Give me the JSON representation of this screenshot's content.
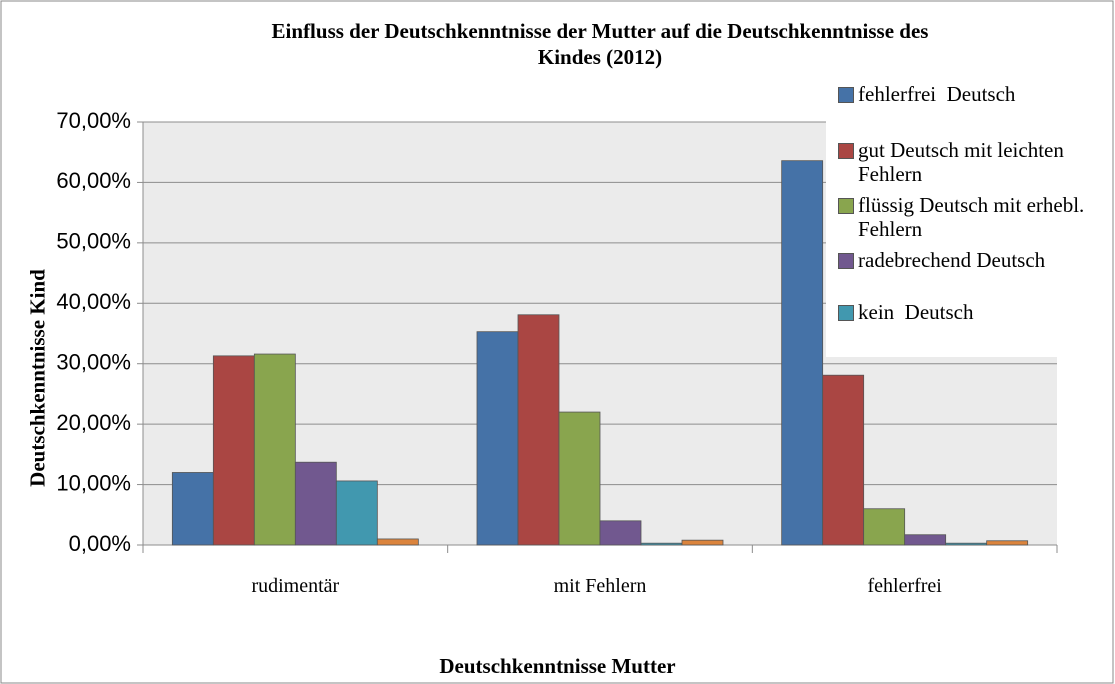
{
  "chart_data": {
    "type": "bar",
    "title": "Einfluss der Deutschkenntnisse der Mutter auf die Deutschkenntnisse des Kindes (2012)",
    "x_label": "Deutschkenntnisse Mutter",
    "y_label": "Deutschkenntnisse Kind",
    "categories": [
      "rudimentär",
      "mit Fehlern",
      "fehlerfrei"
    ],
    "series": [
      {
        "name": "fehlerfrei  Deutsch",
        "color": "#4572a7",
        "values": [
          12.0,
          35.3,
          63.6
        ]
      },
      {
        "name": "gut Deutsch mit leichten Fehlern",
        "color": "#aa4643",
        "values": [
          31.3,
          38.1,
          28.1
        ]
      },
      {
        "name": "flüssig Deutsch mit erhebl. Fehlern",
        "color": "#89a54e",
        "values": [
          31.6,
          22.0,
          6.0
        ]
      },
      {
        "name": "radebrechend Deutsch",
        "color": "#71588f",
        "values": [
          13.7,
          4.0,
          1.7
        ]
      },
      {
        "name": "kein  Deutsch",
        "color": "#4198af",
        "values": [
          10.6,
          0.3,
          0.3
        ]
      },
      {
        "color": "#db843d",
        "values": [
          1.0,
          0.8,
          0.7
        ]
      }
    ],
    "ylim": [
      0,
      70
    ],
    "yticks": [
      {
        "value": 0,
        "label": "0,00%"
      },
      {
        "value": 10,
        "label": "10,00%"
      },
      {
        "value": 20,
        "label": "20,00%"
      },
      {
        "value": 30,
        "label": "30,00%"
      },
      {
        "value": 40,
        "label": "40,00%"
      },
      {
        "value": 50,
        "label": "50,00%"
      },
      {
        "value": 60,
        "label": "60,00%"
      },
      {
        "value": 70,
        "label": "70,00%"
      }
    ],
    "grid": true,
    "legend": "right"
  }
}
